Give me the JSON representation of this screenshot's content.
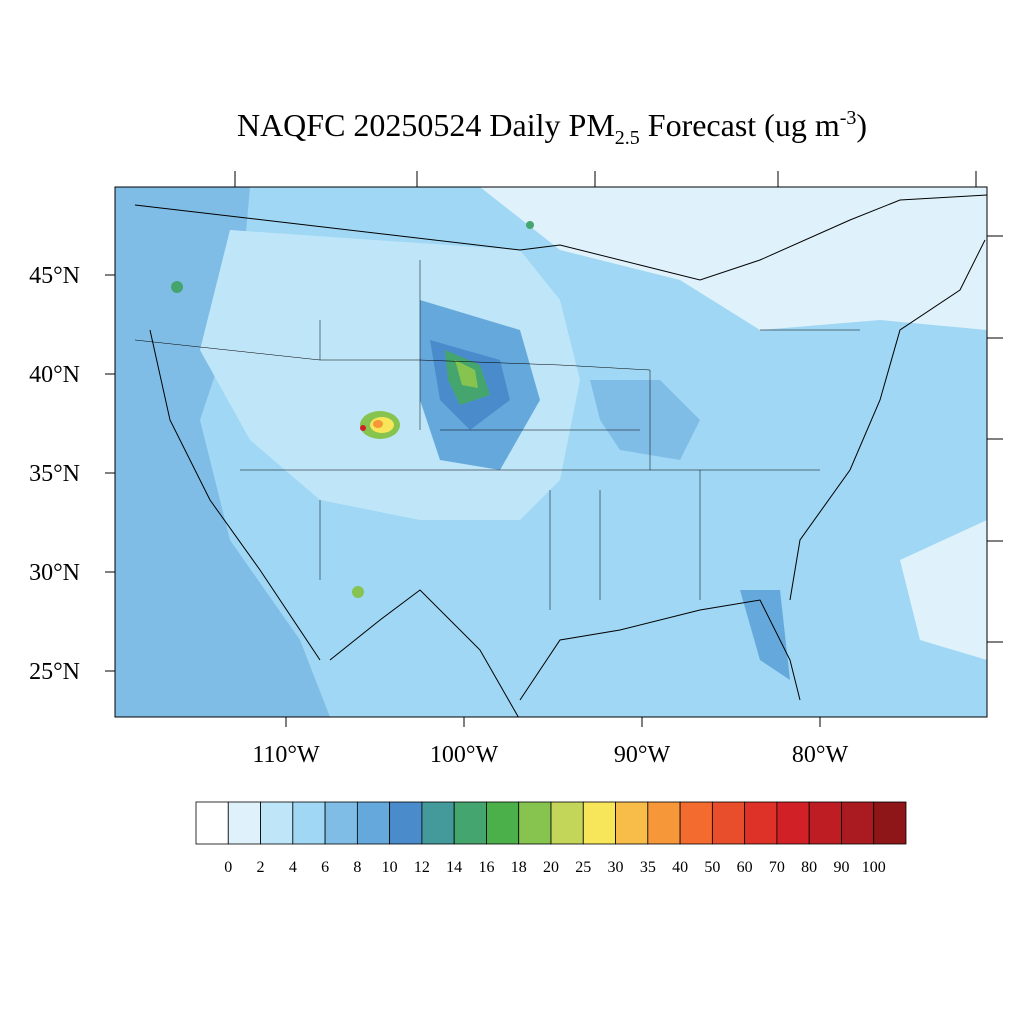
{
  "title": {
    "main": "NAQFC 20250524 Daily PM",
    "sub": "2.5",
    "rest": " Forecast (ug m",
    "sup": "-3",
    "end": ")"
  },
  "map": {
    "lat_labels": [
      "45°N",
      "40°N",
      "35°N",
      "30°N",
      "25°N"
    ],
    "lon_labels": [
      "110°W",
      "100°W",
      "90°W",
      "80°W"
    ]
  },
  "colorbar": {
    "levels": [
      0,
      2,
      4,
      6,
      8,
      10,
      12,
      14,
      16,
      18,
      20,
      25,
      30,
      35,
      40,
      50,
      60,
      70,
      80,
      90,
      100
    ],
    "colors": [
      "#ffffff",
      "#dff2fb",
      "#bfe6f8",
      "#9fd7f4",
      "#80bde6",
      "#65a8dc",
      "#4a8ccb",
      "#44999a",
      "#45a56f",
      "#4bb04a",
      "#86c44f",
      "#c3d65a",
      "#f7e55a",
      "#f8bd48",
      "#f6973a",
      "#f36b2e",
      "#e84e2b",
      "#de3127",
      "#d12127",
      "#be1d24",
      "#a91b21",
      "#8e1518"
    ]
  }
}
